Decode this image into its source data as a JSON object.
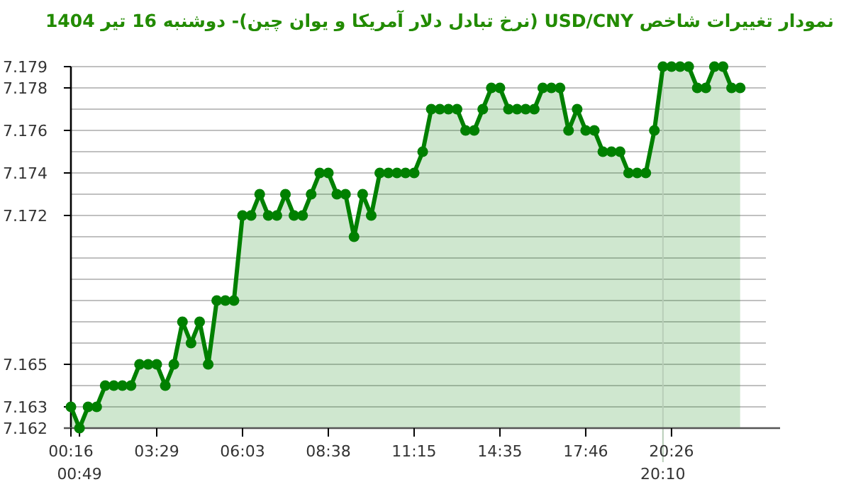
{
  "chart_data": {
    "type": "area",
    "title": "نمودار تغییرات شاخص USD/CNY (نرخ تبادل دلار آمریکا و یوان چین)- دوشنبه  16 تیر 1404",
    "categories": [
      "00:16",
      "00:49",
      null,
      null,
      null,
      null,
      null,
      null,
      null,
      null,
      "03:29",
      null,
      null,
      null,
      null,
      null,
      null,
      null,
      null,
      null,
      "06:03",
      null,
      null,
      null,
      null,
      null,
      null,
      null,
      null,
      null,
      "08:38",
      null,
      null,
      null,
      null,
      null,
      null,
      null,
      null,
      null,
      "11:15",
      null,
      null,
      null,
      null,
      null,
      null,
      null,
      null,
      null,
      "14:35",
      null,
      null,
      null,
      null,
      null,
      null,
      null,
      null,
      null,
      "17:46",
      null,
      null,
      null,
      null,
      null,
      null,
      null,
      null,
      "20:10",
      "20:26",
      null,
      null,
      null,
      null,
      null,
      null,
      null,
      null
    ],
    "series": [
      {
        "color": "#008000",
        "values": [
          7.163,
          7.162,
          7.163,
          7.163,
          7.164,
          7.164,
          7.164,
          7.164,
          7.165,
          7.165,
          7.165,
          7.164,
          7.165,
          7.167,
          7.166,
          7.167,
          7.165,
          7.168,
          7.168,
          7.168,
          7.172,
          7.172,
          7.173,
          7.172,
          7.172,
          7.173,
          7.172,
          7.172,
          7.173,
          7.174,
          7.174,
          7.173,
          7.173,
          7.171,
          7.173,
          7.172,
          7.174,
          7.174,
          7.174,
          7.174,
          7.174,
          7.175,
          7.177,
          7.177,
          7.177,
          7.177,
          7.176,
          7.176,
          7.177,
          7.178,
          7.178,
          7.177,
          7.177,
          7.177,
          7.177,
          7.178,
          7.178,
          7.178,
          7.176,
          7.177,
          7.176,
          7.176,
          7.175,
          7.175,
          7.175,
          7.174,
          7.174,
          7.174,
          7.176,
          7.179,
          7.179,
          7.179,
          7.179,
          7.178,
          7.178,
          7.179,
          7.179,
          7.178,
          7.178
        ]
      }
    ],
    "ylim": [
      7.162,
      7.179
    ],
    "yticks": [
      7.162,
      7.163,
      {
        "value": 7.164,
        "label": null
      },
      7.165,
      {
        "value": 7.166,
        "label": null
      },
      {
        "value": 7.167,
        "label": null
      },
      {
        "value": 7.168,
        "label": null
      },
      {
        "value": 7.169,
        "label": null
      },
      {
        "value": 7.17,
        "label": null
      },
      {
        "value": 7.171,
        "label": null
      },
      7.172,
      {
        "value": 7.173,
        "label": null
      },
      7.174,
      {
        "value": 7.175,
        "label": null
      },
      7.176,
      {
        "value": 7.177,
        "label": null
      },
      7.178,
      7.179
    ],
    "grid": "y",
    "marker": "circle",
    "ref_lines": [
      {
        "axis": "x",
        "value": "20:10",
        "color": "#b8cdb8"
      }
    ]
  }
}
